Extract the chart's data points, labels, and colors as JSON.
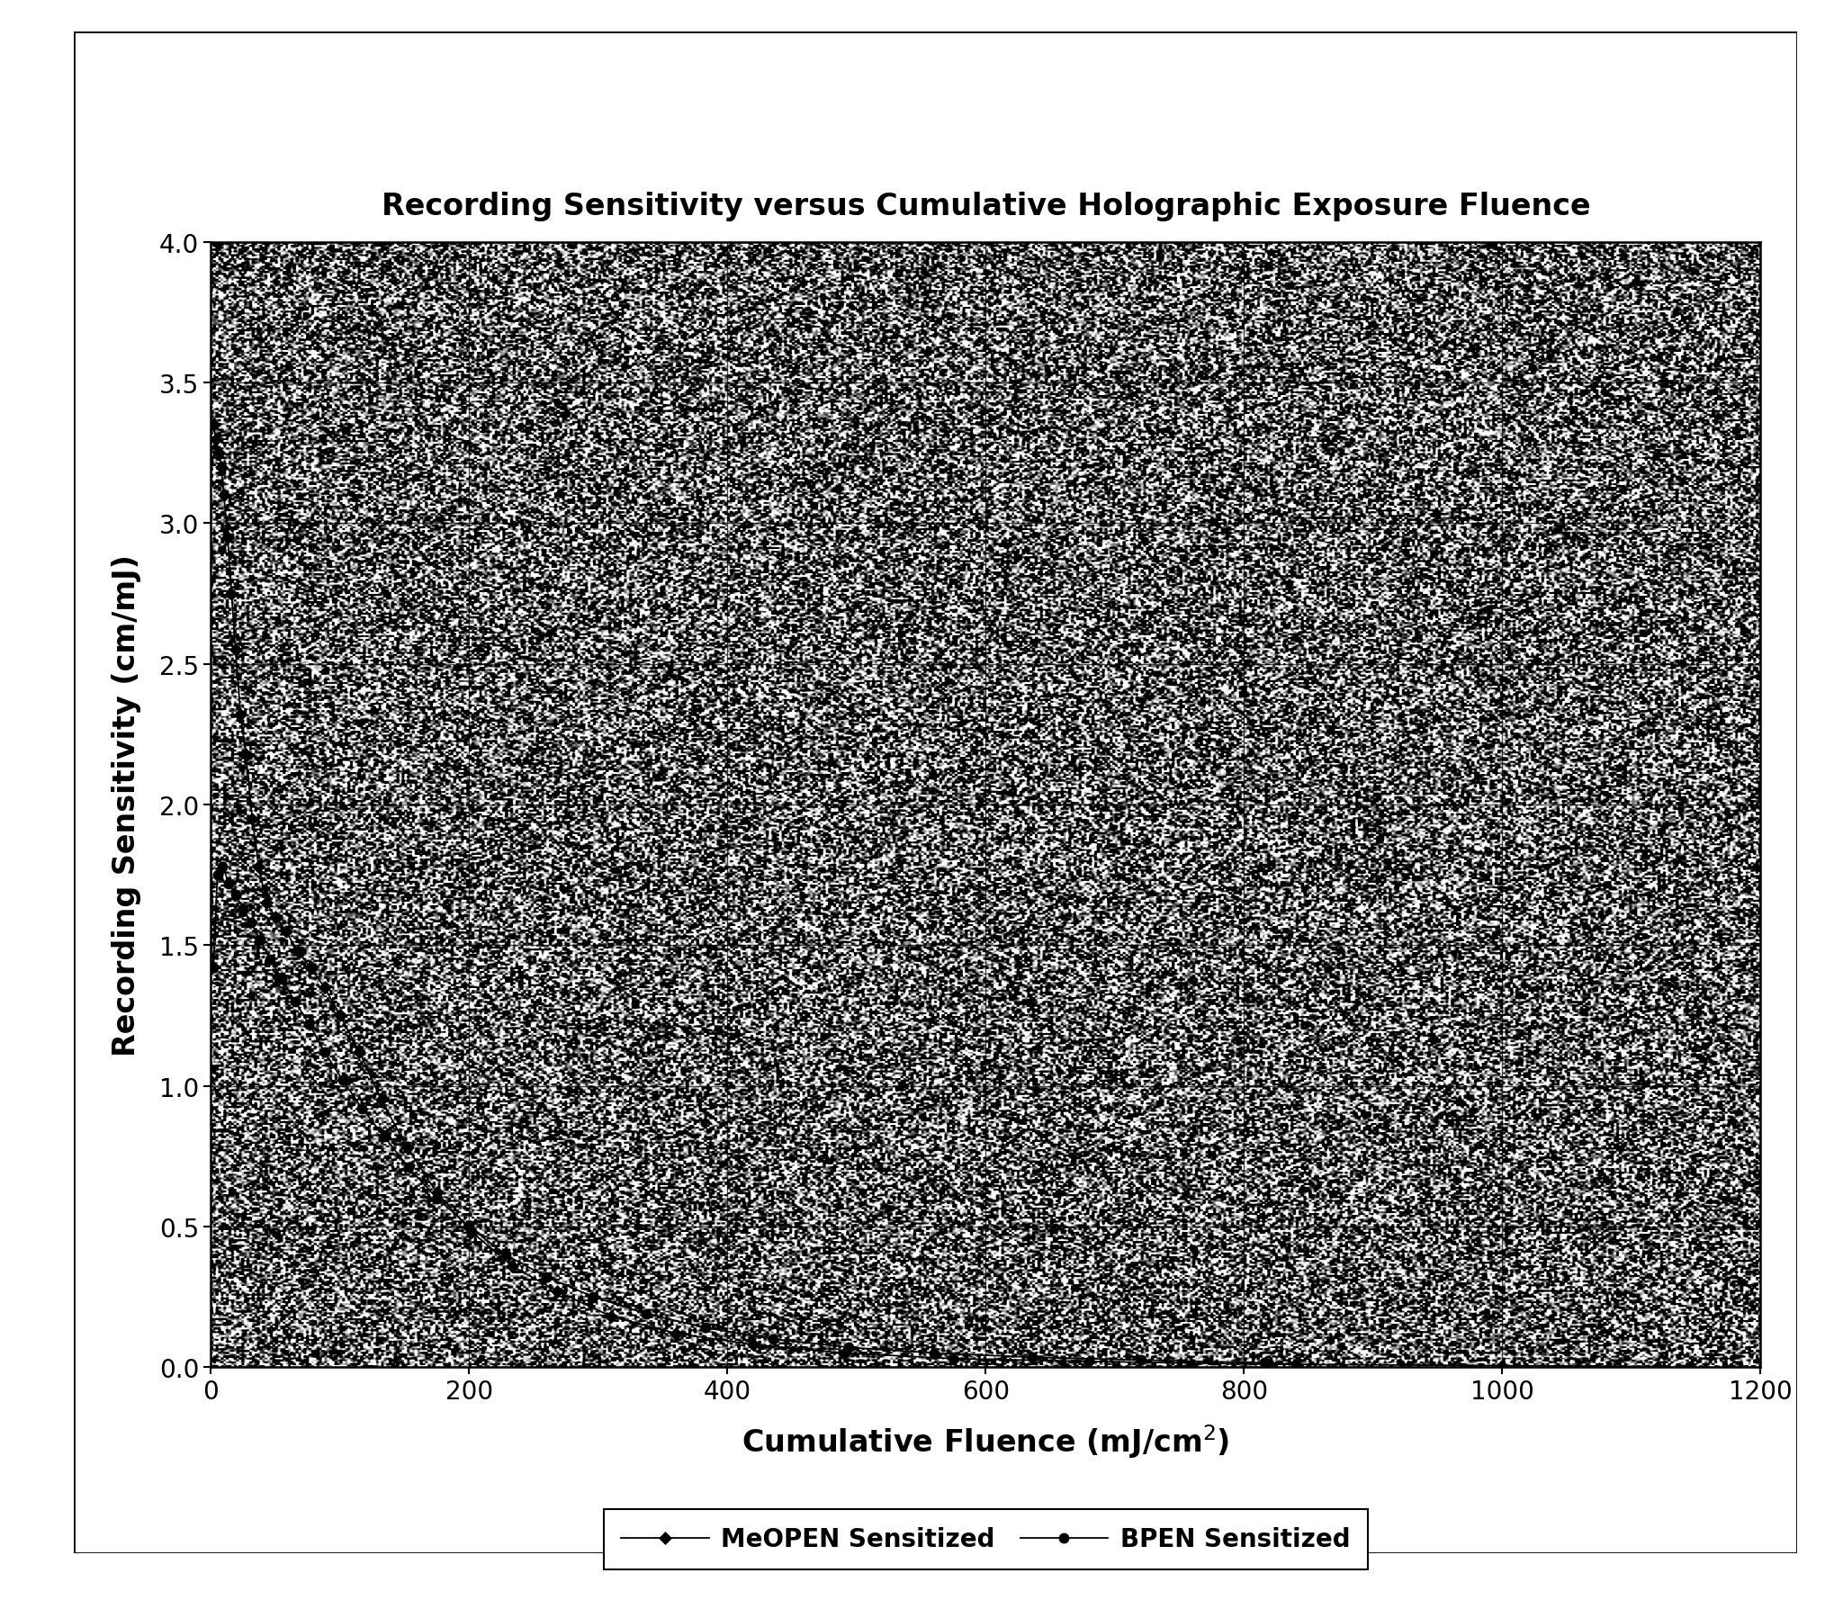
{
  "title": "Recording Sensitivity versus Cumulative Holographic Exposure Fluence",
  "xlabel": "Cumulative Fluence (mJ/cm²)",
  "ylabel": "Recording Sensitivity (cm/mJ)",
  "xlim": [
    0,
    1200
  ],
  "ylim": [
    0,
    4.0
  ],
  "xticks": [
    0,
    200,
    400,
    600,
    800,
    1000,
    1200
  ],
  "xtick_labels": [
    "0",
    "200",
    "400",
    "600",
    "800",
    "1000",
    "1200"
  ],
  "yticks": [
    0.0,
    0.5,
    1.0,
    1.5,
    2.0,
    2.5,
    3.0,
    3.5,
    4.0
  ],
  "ytick_labels": [
    "0.0",
    "0.5",
    "1.0",
    "1.5",
    "2.0",
    "2.5",
    "3.0",
    "3.5",
    "4.0"
  ],
  "meopen": {
    "x": [
      2,
      4,
      6,
      8,
      10,
      13,
      16,
      19,
      23,
      27,
      32,
      37,
      43,
      50,
      58,
      67,
      77,
      88,
      100,
      115,
      132,
      152,
      175,
      202,
      233,
      268,
      310,
      360,
      420,
      490,
      575,
      680,
      820,
      1000,
      1120
    ],
    "y": [
      3.35,
      3.3,
      3.25,
      3.2,
      3.1,
      2.95,
      2.75,
      2.55,
      2.32,
      2.18,
      1.95,
      1.78,
      1.65,
      1.6,
      1.55,
      1.48,
      1.42,
      1.35,
      1.25,
      1.12,
      0.95,
      0.78,
      0.62,
      0.48,
      0.36,
      0.27,
      0.18,
      0.12,
      0.08,
      0.05,
      0.03,
      0.02,
      0.01,
      0.005,
      0.002
    ],
    "color": "#000000",
    "marker": "D",
    "markersize": 7,
    "label": "MeOPEN Sensitized",
    "linestyle": "-"
  },
  "bpen": {
    "x": [
      2,
      5,
      9,
      14,
      19,
      25,
      31,
      38,
      46,
      55,
      65,
      76,
      88,
      102,
      117,
      134,
      153,
      175,
      200,
      228,
      260,
      296,
      337,
      383,
      435,
      494,
      560,
      636,
      720,
      816,
      840
    ],
    "y": [
      1.42,
      1.75,
      1.78,
      1.72,
      1.68,
      1.63,
      1.58,
      1.52,
      1.45,
      1.38,
      1.3,
      1.22,
      1.12,
      1.02,
      0.92,
      0.82,
      0.71,
      0.6,
      0.5,
      0.4,
      0.32,
      0.25,
      0.19,
      0.14,
      0.1,
      0.07,
      0.05,
      0.035,
      0.025,
      0.015,
      0.01
    ],
    "color": "#000000",
    "marker": "o",
    "markersize": 8,
    "label": "BPEN Sensitized",
    "linestyle": "-"
  },
  "noise_seed": 42,
  "noise_density": 600,
  "figure_background": "#ffffff",
  "plot_background": "#a0a0a0"
}
